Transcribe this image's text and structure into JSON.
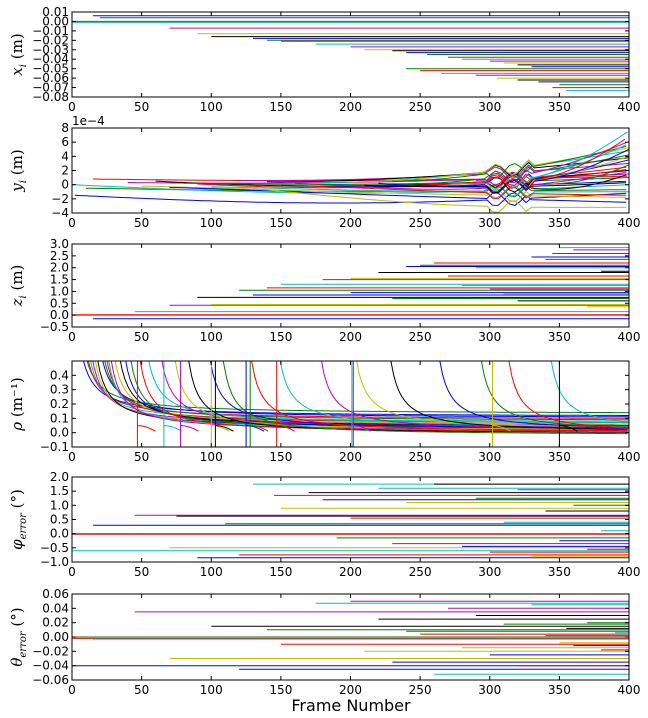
{
  "figure": {
    "xlabel": "Frame Number"
  },
  "chart_data": [
    {
      "type": "line",
      "id": "x",
      "ylabel": "x_i (m)",
      "ylabel_html": "𝑥ᵢ (m)",
      "ylabel_italic": "x",
      "ylabel_sub": "i",
      "ylabel_unit": " (m)",
      "xlim": [
        0,
        400
      ],
      "ylim": [
        -0.08,
        0.01
      ],
      "xticks": [
        0,
        50,
        100,
        150,
        200,
        250,
        300,
        350,
        400
      ],
      "yticks": [
        -0.08,
        -0.07,
        -0.06,
        -0.05,
        -0.04,
        -0.03,
        -0.02,
        -0.01,
        0.0,
        0.01
      ],
      "ytick_labels": [
        "−0.08",
        "−0.07",
        "−0.06",
        "−0.05",
        "−0.04",
        "−0.03",
        "−0.02",
        "−0.01",
        "0.00",
        "0.01"
      ],
      "offset_text": "",
      "pattern": "tracks",
      "tracks": [
        [
          15,
          0.006
        ],
        [
          20,
          0.004
        ],
        [
          0,
          0.0
        ],
        [
          0,
          -0.001
        ],
        [
          70,
          -0.007
        ],
        [
          90,
          -0.013
        ],
        [
          100,
          -0.016
        ],
        [
          130,
          -0.018
        ],
        [
          140,
          -0.02
        ],
        [
          150,
          -0.021
        ],
        [
          175,
          -0.024
        ],
        [
          200,
          -0.027
        ],
        [
          210,
          -0.03
        ],
        [
          230,
          -0.031
        ],
        [
          240,
          -0.033
        ],
        [
          255,
          -0.035
        ],
        [
          270,
          -0.038
        ],
        [
          280,
          -0.04
        ],
        [
          300,
          -0.042
        ],
        [
          310,
          -0.044
        ],
        [
          320,
          -0.046
        ],
        [
          330,
          -0.048
        ],
        [
          240,
          -0.05
        ],
        [
          250,
          -0.052
        ],
        [
          265,
          -0.055
        ],
        [
          290,
          -0.057
        ],
        [
          305,
          -0.06
        ],
        [
          320,
          -0.062
        ],
        [
          335,
          -0.064
        ],
        [
          350,
          -0.067
        ],
        [
          345,
          -0.07
        ],
        [
          355,
          -0.073
        ]
      ]
    },
    {
      "type": "line",
      "id": "y",
      "ylabel": "y_i (m)",
      "ylabel_italic": "y",
      "ylabel_sub": "i",
      "ylabel_unit": " (m)",
      "xlim": [
        0,
        400
      ],
      "ylim": [
        -4,
        8
      ],
      "xticks": [
        0,
        50,
        100,
        150,
        200,
        250,
        300,
        350,
        400
      ],
      "yticks": [
        -4,
        -2,
        0,
        2,
        4,
        6,
        8
      ],
      "ytick_labels": [
        "−4",
        "−2",
        "0",
        "2",
        "4",
        "6",
        "8"
      ],
      "offset_text": "1e−4",
      "pattern": "drift",
      "tracks": [
        [
          2,
          -1.5,
          -1.2
        ],
        [
          10,
          -0.5,
          -0.7
        ],
        [
          15,
          0.8,
          1.2
        ],
        [
          0,
          0.0,
          0.0
        ],
        [
          40,
          0.3,
          1.5
        ],
        [
          50,
          -0.2,
          -1.8
        ],
        [
          60,
          0.5,
          2.0
        ],
        [
          70,
          -0.4,
          -2.5
        ],
        [
          80,
          0.2,
          1.0
        ],
        [
          90,
          0.1,
          2.5
        ],
        [
          100,
          -0.3,
          -1.0
        ],
        [
          120,
          0.6,
          3.0
        ],
        [
          130,
          -0.6,
          -3.2
        ],
        [
          140,
          0.4,
          3.8
        ],
        [
          150,
          -0.1,
          0.5
        ],
        [
          160,
          0.2,
          4.2
        ],
        [
          170,
          -0.2,
          -1.5
        ],
        [
          180,
          0.3,
          4.8
        ],
        [
          190,
          0.0,
          1.8
        ],
        [
          200,
          0.4,
          5.2
        ],
        [
          210,
          -0.1,
          0.3
        ],
        [
          220,
          0.2,
          3.5
        ],
        [
          230,
          0.5,
          5.5
        ],
        [
          250,
          0.1,
          2.2
        ],
        [
          270,
          0.3,
          5.8
        ],
        [
          290,
          0.6,
          6.1
        ],
        [
          300,
          0.2,
          4.0
        ],
        [
          310,
          0.1,
          1.5
        ],
        [
          320,
          0.3,
          5.0
        ],
        [
          340,
          0.1,
          2.8
        ],
        [
          305,
          0.5,
          6.8
        ],
        [
          315,
          0.4,
          7.6
        ]
      ]
    },
    {
      "type": "line",
      "id": "z",
      "ylabel": "z_i (m)",
      "ylabel_italic": "z",
      "ylabel_sub": "i",
      "ylabel_unit": " (m)",
      "xlim": [
        0,
        400
      ],
      "ylim": [
        -0.5,
        3.0
      ],
      "xticks": [
        0,
        50,
        100,
        150,
        200,
        250,
        300,
        350,
        400
      ],
      "yticks": [
        -0.5,
        0.0,
        0.5,
        1.0,
        1.5,
        2.0,
        2.5,
        3.0
      ],
      "ytick_labels": [
        "−0.5",
        "0.0",
        "0.5",
        "1.0",
        "1.5",
        "2.0",
        "2.5",
        "3.0"
      ],
      "offset_text": "",
      "pattern": "tracks",
      "tracks": [
        [
          15,
          -0.15
        ],
        [
          0,
          0.0
        ],
        [
          0,
          0.02
        ],
        [
          45,
          0.15
        ],
        [
          70,
          0.42
        ],
        [
          100,
          0.45
        ],
        [
          90,
          0.75
        ],
        [
          130,
          0.85
        ],
        [
          120,
          1.05
        ],
        [
          140,
          1.15
        ],
        [
          150,
          1.3
        ],
        [
          180,
          1.5
        ],
        [
          200,
          1.55
        ],
        [
          220,
          1.8
        ],
        [
          240,
          2.05
        ],
        [
          250,
          2.1
        ],
        [
          260,
          2.2
        ],
        [
          280,
          1.25
        ],
        [
          300,
          1.1
        ],
        [
          310,
          0.9
        ],
        [
          320,
          0.6
        ],
        [
          330,
          2.45
        ],
        [
          340,
          2.35
        ],
        [
          345,
          2.6
        ],
        [
          350,
          2.85
        ],
        [
          360,
          2.75
        ],
        [
          370,
          0.35
        ],
        [
          380,
          1.85
        ],
        [
          200,
          0.95
        ],
        [
          230,
          0.7
        ],
        [
          270,
          1.65
        ],
        [
          290,
          2.0
        ]
      ]
    },
    {
      "type": "line",
      "id": "rho",
      "ylabel": "ρ (m⁻¹)",
      "ylabel_italic": "ρ",
      "ylabel_sub": "",
      "ylabel_unit": " (m⁻¹)",
      "xlim": [
        0,
        400
      ],
      "ylim": [
        -0.1,
        0.5
      ],
      "xticks": [
        0,
        50,
        100,
        150,
        200,
        250,
        300,
        350,
        400
      ],
      "yticks": [
        -0.1,
        0.0,
        0.1,
        0.2,
        0.3,
        0.4
      ],
      "ytick_labels": [
        "−0.1",
        "0.0",
        "0.1",
        "0.2",
        "0.3",
        "0.4"
      ],
      "offset_text": "",
      "pattern": "decay",
      "tracks": [
        [
          2,
          0.11
        ],
        [
          4,
          0.13
        ],
        [
          6,
          0.09
        ],
        [
          8,
          0.07
        ],
        [
          10,
          0.05
        ],
        [
          12,
          0.04
        ],
        [
          14,
          0.03
        ],
        [
          16,
          0.1
        ],
        [
          18,
          0.08
        ],
        [
          20,
          0.06
        ],
        [
          22,
          0.02
        ],
        [
          24,
          0.01
        ],
        [
          26,
          0.05
        ],
        [
          30,
          0.04
        ],
        [
          34,
          0.03
        ],
        [
          38,
          0.02
        ],
        [
          45,
          0.0
        ],
        [
          50,
          0.06
        ],
        [
          60,
          0.03
        ],
        [
          70,
          0.01
        ],
        [
          80,
          -0.01
        ],
        [
          95,
          0.02
        ],
        [
          105,
          -0.02
        ],
        [
          125,
          0.0
        ],
        [
          145,
          0.03
        ],
        [
          175,
          0.01
        ],
        [
          200,
          0.02
        ],
        [
          225,
          0.0
        ],
        [
          260,
          0.01
        ],
        [
          290,
          0.0
        ],
        [
          310,
          -0.01
        ],
        [
          340,
          0.01
        ]
      ],
      "spikes": [
        47,
        66,
        78,
        100,
        103,
        125,
        128,
        147,
        201,
        202,
        302,
        350
      ]
    },
    {
      "type": "line",
      "id": "phi",
      "ylabel": "φ_error (°)",
      "ylabel_italic": "φ",
      "ylabel_sub": "error",
      "ylabel_unit": " (°)",
      "xlim": [
        0,
        400
      ],
      "ylim": [
        -1.0,
        2.0
      ],
      "xticks": [
        0,
        50,
        100,
        150,
        200,
        250,
        300,
        350,
        400
      ],
      "yticks": [
        -1.0,
        -0.5,
        0.0,
        0.5,
        1.0,
        1.5,
        2.0
      ],
      "ytick_labels": [
        "−1.0",
        "−0.5",
        "0.0",
        "0.5",
        "1.0",
        "1.5",
        "2.0"
      ],
      "offset_text": "",
      "pattern": "tracks",
      "tracks": [
        [
          15,
          0.3
        ],
        [
          0,
          0.0
        ],
        [
          0,
          -0.02
        ],
        [
          0,
          -0.6
        ],
        [
          45,
          0.65
        ],
        [
          70,
          -0.5
        ],
        [
          75,
          0.62
        ],
        [
          90,
          -0.85
        ],
        [
          110,
          0.35
        ],
        [
          120,
          -0.75
        ],
        [
          130,
          1.75
        ],
        [
          145,
          1.35
        ],
        [
          150,
          0.9
        ],
        [
          170,
          1.45
        ],
        [
          180,
          1.2
        ],
        [
          190,
          -0.15
        ],
        [
          200,
          0.55
        ],
        [
          220,
          1.6
        ],
        [
          230,
          -0.35
        ],
        [
          240,
          1.1
        ],
        [
          260,
          1.75
        ],
        [
          280,
          -0.45
        ],
        [
          290,
          1.25
        ],
        [
          300,
          -0.65
        ],
        [
          310,
          0.4
        ],
        [
          320,
          1.55
        ],
        [
          330,
          -0.8
        ],
        [
          340,
          0.8
        ],
        [
          350,
          -0.25
        ],
        [
          360,
          1.0
        ],
        [
          370,
          -0.55
        ],
        [
          380,
          0.1
        ]
      ]
    },
    {
      "type": "line",
      "id": "theta",
      "ylabel": "θ_error (°)",
      "ylabel_italic": "θ",
      "ylabel_sub": "error",
      "ylabel_unit": " (°)",
      "xlim": [
        0,
        400
      ],
      "ylim": [
        -0.06,
        0.06
      ],
      "xticks": [
        0,
        50,
        100,
        150,
        200,
        250,
        300,
        350,
        400
      ],
      "yticks": [
        -0.06,
        -0.04,
        -0.02,
        0.0,
        0.02,
        0.04,
        0.06
      ],
      "ytick_labels": [
        "−0.06",
        "−0.04",
        "−0.02",
        "0.00",
        "0.02",
        "0.04",
        "0.06"
      ],
      "offset_text": "",
      "pattern": "tracks",
      "tracks": [
        [
          0,
          -0.04
        ],
        [
          0,
          0.0
        ],
        [
          0,
          -0.002
        ],
        [
          15,
          -0.003
        ],
        [
          45,
          0.035
        ],
        [
          70,
          -0.03
        ],
        [
          100,
          0.015
        ],
        [
          120,
          -0.045
        ],
        [
          140,
          0.01
        ],
        [
          150,
          -0.01
        ],
        [
          175,
          0.047
        ],
        [
          200,
          0.05
        ],
        [
          210,
          -0.02
        ],
        [
          220,
          0.025
        ],
        [
          230,
          -0.035
        ],
        [
          240,
          0.008
        ],
        [
          250,
          0.004
        ],
        [
          260,
          -0.052
        ],
        [
          270,
          0.04
        ],
        [
          280,
          -0.015
        ],
        [
          290,
          0.03
        ],
        [
          300,
          -0.025
        ],
        [
          310,
          0.018
        ],
        [
          320,
          -0.04
        ],
        [
          330,
          0.045
        ],
        [
          340,
          0.002
        ],
        [
          350,
          -0.008
        ],
        [
          355,
          0.012
        ],
        [
          360,
          -0.012
        ],
        [
          370,
          0.02
        ],
        [
          380,
          -0.018
        ],
        [
          390,
          0.006
        ]
      ]
    }
  ],
  "colors": {
    "palette": [
      "#0000ff",
      "#008000",
      "#ff0000",
      "#00bfbf",
      "#bf00bf",
      "#bfbf00",
      "#000000"
    ]
  }
}
